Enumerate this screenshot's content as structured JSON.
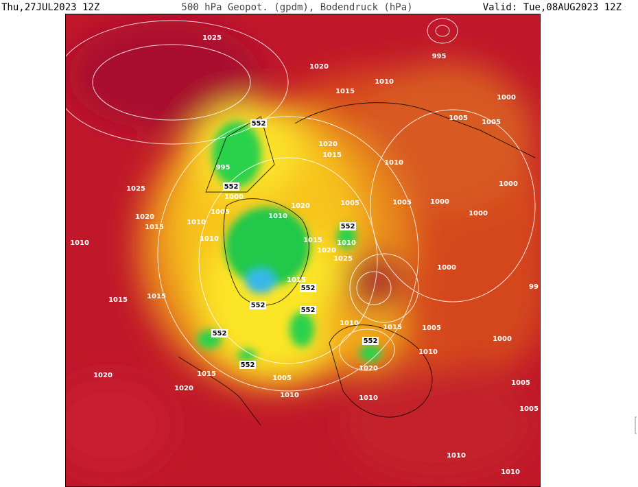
{
  "header": {
    "init": "Thu,27JUL2023 12Z",
    "title": "500 hPa Geopot. (gpdm), Bodendruck (hPa)",
    "valid": "Valid: Tue,08AUG2023 12Z"
  },
  "contour_labels": [
    "1025",
    "1020",
    "1015",
    "1010",
    "995",
    "1000",
    "1005",
    "1005",
    "552",
    "995",
    "552",
    "1000",
    "1025",
    "1020",
    "1015",
    "1010",
    "1000",
    "1005",
    "1020",
    "1005",
    "1005",
    "1000",
    "1010",
    "1020",
    "1015",
    "1010",
    "1000",
    "552",
    "1010",
    "1010",
    "1015",
    "1010",
    "1020",
    "1025",
    "1000",
    "99",
    "1015",
    "552",
    "552",
    "552",
    "1015",
    "1015",
    "1010",
    "1015",
    "1005",
    "552",
    "552",
    "1000",
    "1010",
    "552",
    "1020",
    "1015",
    "1020",
    "1005",
    "1020",
    "1010",
    "1010",
    "1005",
    "1005",
    "1010",
    "1010"
  ]
}
